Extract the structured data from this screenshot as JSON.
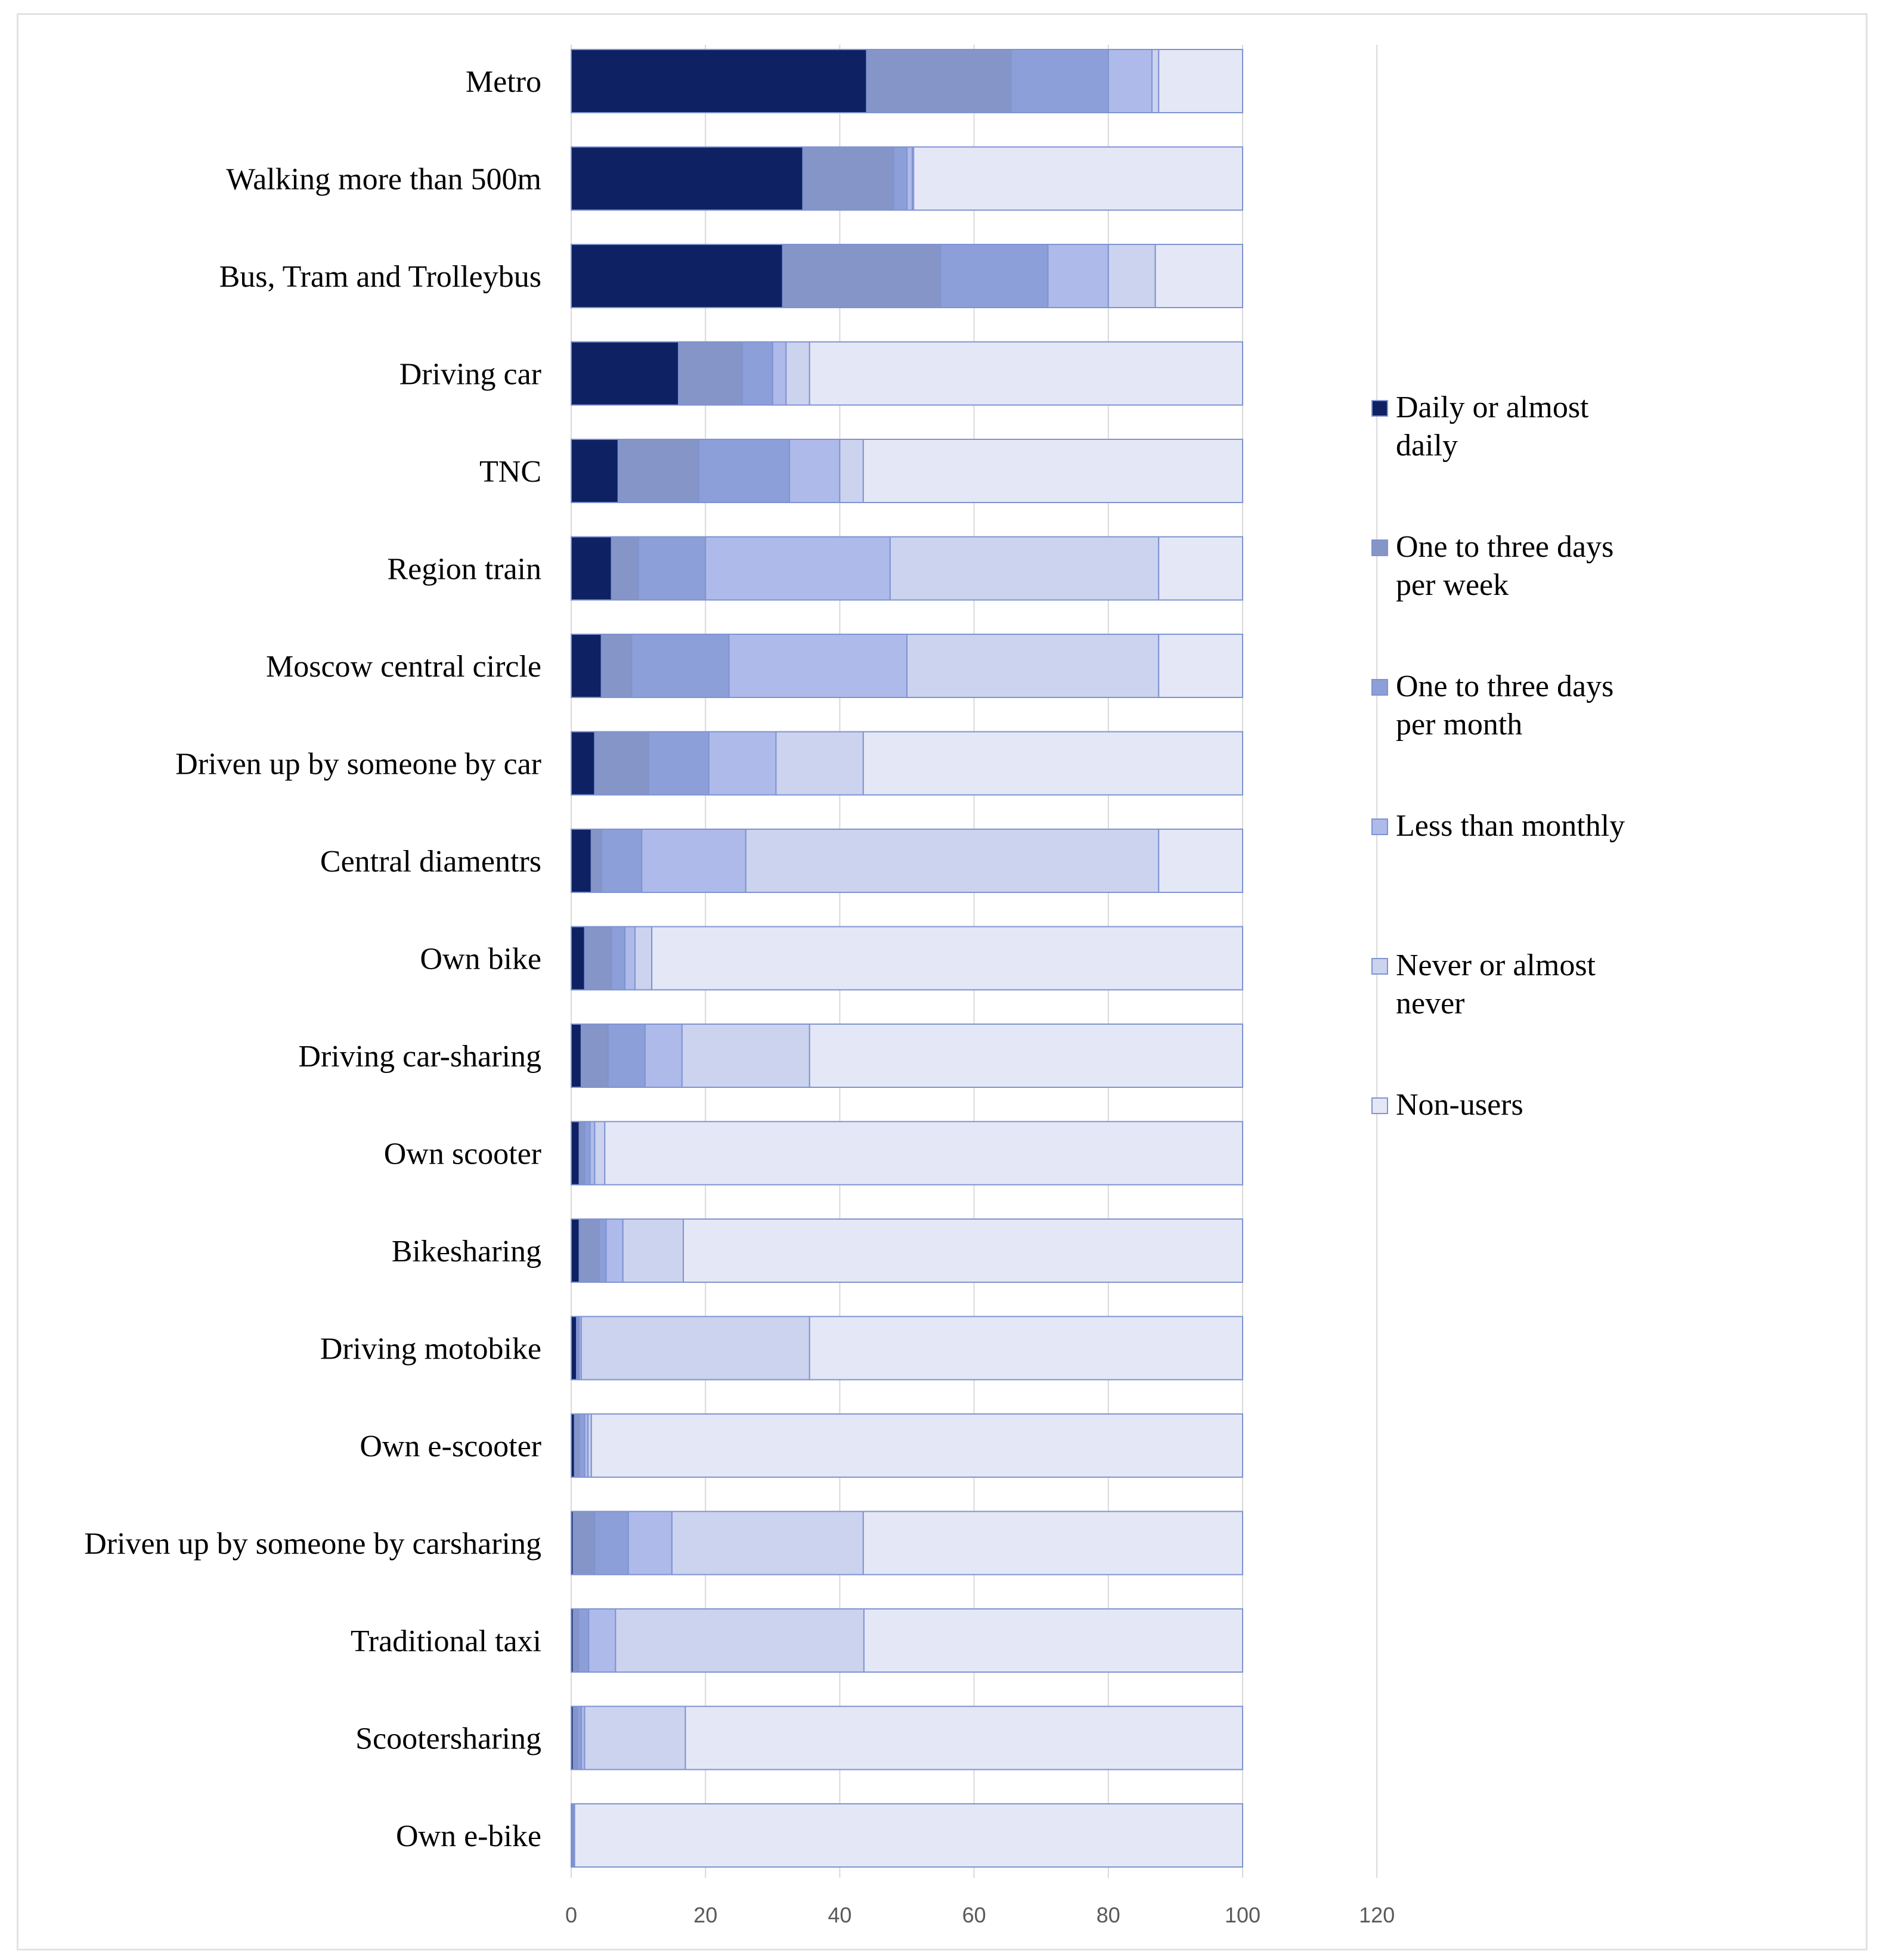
{
  "chart_data": {
    "type": "bar",
    "orientation": "horizontal",
    "stacked": true,
    "title": "",
    "xlabel": "",
    "ylabel": "",
    "xlim": [
      0,
      120
    ],
    "xticks": [
      "0",
      "20",
      "40",
      "60",
      "80",
      "100",
      "120"
    ],
    "grid": true,
    "legend_position": "right",
    "categories": [
      "Metro",
      "Walking more than 500m",
      "Bus, Tram and Trolleybus",
      "Driving car",
      "TNC",
      "Region train",
      "Moscow central circle",
      "Driven up by someone by car",
      "Central diamentrs",
      "Own bike",
      "Driving car-sharing",
      "Own scooter",
      "Bikesharing",
      "Driving motobike",
      "Own e-scooter",
      "Driven up by someone by carsharing",
      "Traditional taxi",
      "Scootersharing",
      "Own e-bike"
    ],
    "series": [
      {
        "name": "Daily or almost daily",
        "color": "#0e2163",
        "values": [
          44,
          34.5,
          31.5,
          16,
          7,
          6,
          4.5,
          3.5,
          3,
          2,
          1.5,
          1.2,
          1.2,
          0.8,
          0.5,
          0.3,
          0.3,
          0.3,
          0.1
        ]
      },
      {
        "name": "One to three days per week",
        "color": "#8595c8",
        "values": [
          21.5,
          13.5,
          23.5,
          9.5,
          12,
          4,
          4.5,
          8,
          1.5,
          4,
          4,
          0.8,
          3,
          0.2,
          0.7,
          3.2,
          0.8,
          0.6,
          0.1
        ]
      },
      {
        "name": "One to three days per month",
        "color": "#8d9fd8",
        "values": [
          14.5,
          2,
          16,
          4.5,
          13.5,
          10,
          14.5,
          9,
          6,
          2,
          5.5,
          0.8,
          1,
          0.2,
          0.8,
          5,
          1.5,
          0.6,
          0.1
        ]
      },
      {
        "name": "Less than monthly",
        "color": "#aebaea",
        "values": [
          6.5,
          0.8,
          9,
          2,
          7.5,
          27.5,
          26.5,
          10,
          15.5,
          1.5,
          5.5,
          0.7,
          2.5,
          0.3,
          0.5,
          6.5,
          4,
          0.5,
          0.1
        ]
      },
      {
        "name": "Never or almost never",
        "color": "#ccd3ef",
        "values": [
          1,
          0.2,
          7,
          3.5,
          3.5,
          40,
          37.5,
          13,
          61.5,
          2.5,
          19,
          1.5,
          9,
          34,
          0.5,
          28.5,
          37,
          15,
          0.1
        ]
      },
      {
        "name": "Non-users",
        "color": "#e4e7f6",
        "values": [
          12.5,
          49,
          13,
          64.5,
          56.5,
          12.5,
          12.5,
          56.5,
          12.5,
          88,
          64.5,
          95,
          83.3,
          64.5,
          97,
          56.5,
          56.4,
          83,
          99.5
        ]
      }
    ],
    "legend": [
      "Daily or almost daily",
      "One to three days per week",
      "One to three days per month",
      "Less than monthly",
      "Never or almost never",
      "Non-users"
    ]
  }
}
